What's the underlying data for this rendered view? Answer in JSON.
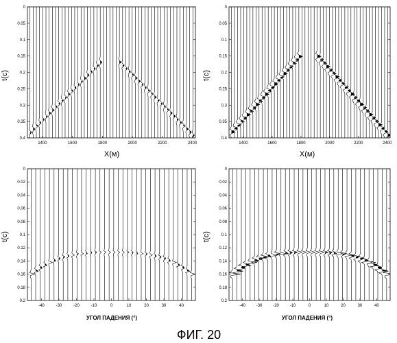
{
  "figure": {
    "caption": "ФИГ. 20"
  },
  "chart_data": [
    {
      "type": "wiggle-trace",
      "position": "top-left",
      "xlabel": "X(м)",
      "ylabel": "t(c)",
      "xlim": [
        1300,
        2420
      ],
      "ylim": [
        0,
        0.4
      ],
      "y_inverted": true,
      "xticks": [
        1400,
        1600,
        1800,
        2000,
        2200,
        2400
      ],
      "yticks": [
        0,
        0.05,
        0.1,
        0.15,
        0.2,
        0.25,
        0.3,
        0.35,
        0.4
      ],
      "trace_count": 52,
      "event": {
        "shape": "hyperbola",
        "apex_x": 1850,
        "apex_t": 0.14,
        "edge_t": 0.4,
        "amplitude": "weak"
      }
    },
    {
      "type": "wiggle-trace",
      "position": "top-right",
      "xlabel": "X(м)",
      "ylabel": "t(c)",
      "xlim": [
        1300,
        2420
      ],
      "ylim": [
        0,
        0.4
      ],
      "y_inverted": true,
      "xticks": [
        1400,
        1600,
        1800,
        2000,
        2200,
        2400
      ],
      "yticks": [
        0,
        0.05,
        0.1,
        0.15,
        0.2,
        0.25,
        0.3,
        0.35,
        0.4
      ],
      "trace_count": 52,
      "event": {
        "shape": "hyperbola",
        "apex_x": 1850,
        "apex_t": 0.12,
        "edge_t": 0.4,
        "amplitude": "strong"
      }
    },
    {
      "type": "wiggle-trace",
      "position": "bottom-left",
      "xlabel": "УГОЛ ПАДЕНИЯ (°)",
      "ylabel": "t(c)",
      "xlim": [
        -48,
        48
      ],
      "ylim": [
        0,
        0.2
      ],
      "y_inverted": true,
      "xticks": [
        -40,
        -30,
        -20,
        -10,
        0,
        10,
        20,
        30,
        40
      ],
      "yticks": [
        0,
        0.02,
        0.04,
        0.06,
        0.08,
        0.1,
        0.12,
        0.14,
        0.16,
        0.18,
        0.2
      ],
      "trace_count": 36,
      "event": {
        "shape": "flat-curving-down",
        "center_t": 0.127,
        "edge_t": 0.165,
        "amplitude": "weak"
      }
    },
    {
      "type": "wiggle-trace",
      "position": "bottom-right",
      "xlabel": "УГОЛ ПАДЕНИЯ (°)",
      "ylabel": "t(c)",
      "xlim": [
        -48,
        48
      ],
      "ylim": [
        0,
        0.2
      ],
      "y_inverted": true,
      "xticks": [
        -40,
        -30,
        -20,
        -10,
        0,
        10,
        20,
        30,
        40
      ],
      "yticks": [
        0,
        0.02,
        0.04,
        0.06,
        0.08,
        0.1,
        0.12,
        0.14,
        0.16,
        0.18,
        0.2
      ],
      "trace_count": 36,
      "event": {
        "shape": "flat-curving-down",
        "center_t": 0.127,
        "edge_t": 0.165,
        "amplitude": "strong"
      }
    }
  ]
}
